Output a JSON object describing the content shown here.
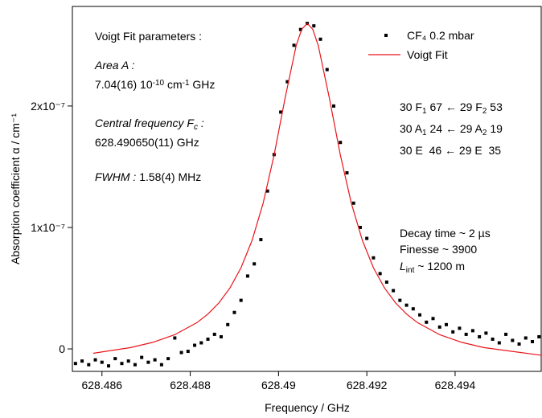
{
  "chart_data": {
    "type": "scatter",
    "x_label": "Frequency / GHz",
    "y_label": "Absorption coefficient α / cm⁻¹",
    "xlim": [
      628.48533,
      628.49595
    ],
    "xticks": [
      628.486,
      628.488,
      628.49,
      628.492,
      628.494
    ],
    "ylim": [
      -1.85e-08,
      2.82e-07
    ],
    "yticks": [
      0,
      {
        "value": 1e-07,
        "label": "1x10⁻⁷"
      },
      {
        "value": 2e-07,
        "label": "2x10⁻⁷"
      }
    ],
    "series": [
      {
        "name": "CF₄ 0.2 mbar",
        "type": "scatter",
        "color": "#000000",
        "x": [
          628.4854,
          628.48555,
          628.4857,
          628.48585,
          628.486,
          628.48615,
          628.4863,
          628.48645,
          628.4866,
          628.48675,
          628.4869,
          628.48705,
          628.4872,
          628.48735,
          628.4875,
          628.48765,
          628.4878,
          628.48795,
          628.4881,
          628.48825,
          628.4884,
          628.48855,
          628.4887,
          628.48885,
          628.489,
          628.48915,
          628.4893,
          628.48945,
          628.4896,
          628.48975,
          628.4899,
          628.49005,
          628.4902,
          628.49035,
          628.4905,
          628.49065,
          628.4908,
          628.49095,
          628.4911,
          628.49125,
          628.4914,
          628.49155,
          628.4917,
          628.49185,
          628.492,
          628.49215,
          628.4923,
          628.49245,
          628.4926,
          628.49275,
          628.4929,
          628.49305,
          628.4932,
          628.49335,
          628.4935,
          628.49365,
          628.4938,
          628.49395,
          628.4941,
          628.49425,
          628.4944,
          628.49455,
          628.4947,
          628.49485,
          628.495,
          628.49515,
          628.4953,
          628.49545,
          628.4956,
          628.49575,
          628.4959
        ],
        "values": [
          -1.2e-08,
          -1e-08,
          -1.3e-08,
          -9e-09,
          -1.1e-08,
          -1.4e-08,
          -8e-09,
          -1.2e-08,
          -1e-08,
          -1.3e-08,
          -7e-09,
          -1.1e-08,
          -9e-09,
          -1.3e-08,
          -8e-09,
          9e-09,
          -3e-09,
          -2e-09,
          3e-09,
          5e-09,
          8e-09,
          1.2e-08,
          1e-08,
          2e-08,
          3e-08,
          4e-08,
          6e-08,
          7e-08,
          9e-08,
          1.3e-07,
          1.6e-07,
          1.95e-07,
          2.2e-07,
          2.5e-07,
          2.63e-07,
          2.68e-07,
          2.66e-07,
          2.55e-07,
          2.3e-07,
          2e-07,
          1.7e-07,
          1.45e-07,
          1.2e-07,
          1e-07,
          9.1e-08,
          7.5e-08,
          6.2e-08,
          5.5e-08,
          4.8e-08,
          4e-08,
          3.6e-08,
          3.3e-08,
          2.8e-08,
          2.2e-08,
          2.5e-08,
          1.8e-08,
          2e-08,
          1.4e-08,
          1.7e-08,
          1.2e-08,
          1.5e-08,
          1e-08,
          1.3e-08,
          8e-09,
          5e-09,
          1.2e-08,
          7e-09,
          4e-09,
          9e-09,
          6e-09,
          1e-08
        ]
      },
      {
        "name": "Voigt Fit",
        "type": "line",
        "color": "#e8141a",
        "x": [
          628.4858,
          628.48665,
          628.48715,
          628.48765,
          628.48815,
          628.4884,
          628.48865,
          628.4889,
          628.48915,
          628.4894,
          628.48965,
          628.4899,
          628.49015,
          628.4904,
          628.490525,
          628.49065,
          628.490775,
          628.4909,
          628.49115,
          628.4914,
          628.49165,
          628.4919,
          628.49215,
          628.4924,
          628.49265,
          628.4929,
          628.49315,
          628.49365,
          628.49415,
          628.49465,
          628.49595
        ],
        "values": [
          -3.6e-09,
          1.1e-09,
          5.4e-09,
          1.17e-08,
          2.16e-08,
          2.87e-08,
          3.79e-08,
          5.02e-08,
          6.68e-08,
          8.93e-08,
          1.198e-07,
          1.597e-07,
          2.068e-07,
          2.498e-07,
          2.632e-07,
          2.68e-07,
          2.632e-07,
          2.498e-07,
          2.068e-07,
          1.597e-07,
          1.198e-07,
          8.93e-08,
          6.68e-08,
          5.02e-08,
          3.79e-08,
          2.87e-08,
          2.16e-08,
          1.17e-08,
          5.4e-09,
          1.1e-09,
          -5.2e-09
        ]
      }
    ],
    "legend": "upper right",
    "annotations": [
      {
        "parts": [
          {
            "text": "Voigt Fit parameters :"
          }
        ]
      },
      {
        "parts": [
          {
            "text": "Area A :",
            "style": "italic"
          }
        ]
      },
      {
        "parts": [
          {
            "text": "7.04(16) 10"
          },
          {
            "text": "-10",
            "style": "sup"
          },
          {
            "text": " cm"
          },
          {
            "text": "-1",
            "style": "sup"
          },
          {
            "text": " GHz"
          }
        ]
      },
      {
        "parts": [
          {
            "text": "Central frequency F",
            "style": "italic"
          },
          {
            "text": "c",
            "style": "italic-sub"
          },
          {
            "text": " :",
            "style": "italic"
          }
        ]
      },
      {
        "parts": [
          {
            "text": "628.490650(11) GHz"
          }
        ]
      },
      {
        "parts": [
          {
            "text": "FWHM :",
            "style": "italic"
          },
          {
            "text": " 1.58(4) MHz"
          }
        ]
      },
      {
        "parts": [
          {
            "text": "30 F"
          },
          {
            "text": "1",
            "style": "sub"
          },
          {
            "text": " 67 ← 29 F"
          },
          {
            "text": "2",
            "style": "sub"
          },
          {
            "text": " 53"
          }
        ]
      },
      {
        "parts": [
          {
            "text": "30 A"
          },
          {
            "text": "1",
            "style": "sub"
          },
          {
            "text": " 24 ← 29 A"
          },
          {
            "text": "2",
            "style": "sub"
          },
          {
            "text": " 19"
          }
        ]
      },
      {
        "parts": [
          {
            "text": "30 E  46 ← 29 E  35"
          }
        ]
      },
      {
        "parts": [
          {
            "text": "Decay time ~ 2 µs"
          }
        ]
      },
      {
        "parts": [
          {
            "text": "Finesse ~ 3900"
          }
        ]
      },
      {
        "parts": [
          {
            "text": "L",
            "style": "italic"
          },
          {
            "text": "int",
            "style": "sub"
          },
          {
            "text": " ~ 1200 m"
          }
        ]
      }
    ]
  }
}
